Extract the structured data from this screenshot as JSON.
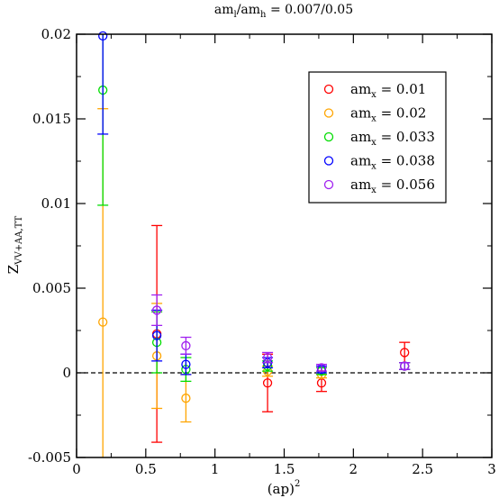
{
  "chart_data": {
    "type": "scatter",
    "title": {
      "base": "am",
      "sub1": "l",
      "mid": "/am",
      "sub2": "h",
      "tail": " = 0.007/0.05"
    },
    "xlabel": {
      "base": "(ap)",
      "sup": "2"
    },
    "ylabel": {
      "base": "Z",
      "sub": "VV+AA,TT"
    },
    "xlim": [
      0,
      3
    ],
    "ylim": [
      -0.005,
      0.02
    ],
    "xticks": [
      0,
      0.5,
      1,
      1.5,
      2,
      2.5,
      3
    ],
    "xtick_labels": [
      "0",
      "0.5",
      "1",
      "1.5",
      "2",
      "2.5",
      "3"
    ],
    "yticks": [
      -0.005,
      0,
      0.005,
      0.01,
      0.015,
      0.02
    ],
    "ytick_labels": [
      "-0.005",
      "0",
      "0.005",
      "0.01",
      "0.015",
      "0.02"
    ],
    "reference_line": {
      "y": 0,
      "style": "dashed"
    },
    "legend_position": "top-right",
    "series": [
      {
        "name_base": "am",
        "name_sub": "x",
        "name_value": " = 0.01",
        "color": "#ff0000",
        "points": [
          {
            "x": 0.58,
            "y": 0.0023,
            "err": 0.0064
          },
          {
            "x": 1.38,
            "y": -0.0006,
            "err": 0.0017
          },
          {
            "x": 1.77,
            "y": -0.0006,
            "err": 0.0005
          },
          {
            "x": 2.37,
            "y": 0.0012,
            "err": 0.0006
          }
        ]
      },
      {
        "name_base": "am",
        "name_sub": "x",
        "name_value": " = 0.02",
        "color": "#ffa500",
        "points": [
          {
            "x": 0.19,
            "y": 0.003,
            "err": 0.0126
          },
          {
            "x": 0.58,
            "y": 0.001,
            "err": 0.0031
          },
          {
            "x": 0.79,
            "y": -0.0015,
            "err": 0.0014
          },
          {
            "x": 1.38,
            "y": 0.0001,
            "err": 0.0003
          },
          {
            "x": 1.77,
            "y": -0.0001,
            "err": 0.0002
          },
          {
            "x": 2.37,
            "y": 0.0004,
            "err": 0.0002
          }
        ]
      },
      {
        "name_base": "am",
        "name_sub": "x",
        "name_value": " = 0.033",
        "color": "#00dd00",
        "points": [
          {
            "x": 0.19,
            "y": 0.0167,
            "err": 0.0068
          },
          {
            "x": 0.58,
            "y": 0.0018,
            "err": 0.0018
          },
          {
            "x": 0.79,
            "y": 0.0002,
            "err": 0.0007
          },
          {
            "x": 1.38,
            "y": 0.0004,
            "err": 0.0003
          },
          {
            "x": 1.77,
            "y": 0.0001,
            "err": 0.0002
          },
          {
            "x": 2.37,
            "y": 0.0004,
            "err": 0.0002
          }
        ]
      },
      {
        "name_base": "am",
        "name_sub": "x",
        "name_value": " = 0.038",
        "color": "#0000ff",
        "points": [
          {
            "x": 0.19,
            "y": 0.0199,
            "err": 0.0058
          },
          {
            "x": 0.58,
            "y": 0.0022,
            "err": 0.0015
          },
          {
            "x": 0.79,
            "y": 0.0005,
            "err": 0.0006
          },
          {
            "x": 1.38,
            "y": 0.0006,
            "err": 0.0003
          },
          {
            "x": 1.77,
            "y": 0.0002,
            "err": 0.0002
          },
          {
            "x": 2.37,
            "y": 0.0004,
            "err": 0.0002
          }
        ]
      },
      {
        "name_base": "am",
        "name_sub": "x",
        "name_value": " = 0.056",
        "color": "#a020f0",
        "points": [
          {
            "x": 0.58,
            "y": 0.0037,
            "err": 0.0009
          },
          {
            "x": 0.79,
            "y": 0.0016,
            "err": 0.0005
          },
          {
            "x": 1.38,
            "y": 0.0009,
            "err": 0.0003
          },
          {
            "x": 1.77,
            "y": 0.0003,
            "err": 0.0002
          },
          {
            "x": 2.37,
            "y": 0.0004,
            "err": 0.0002
          }
        ]
      }
    ]
  }
}
